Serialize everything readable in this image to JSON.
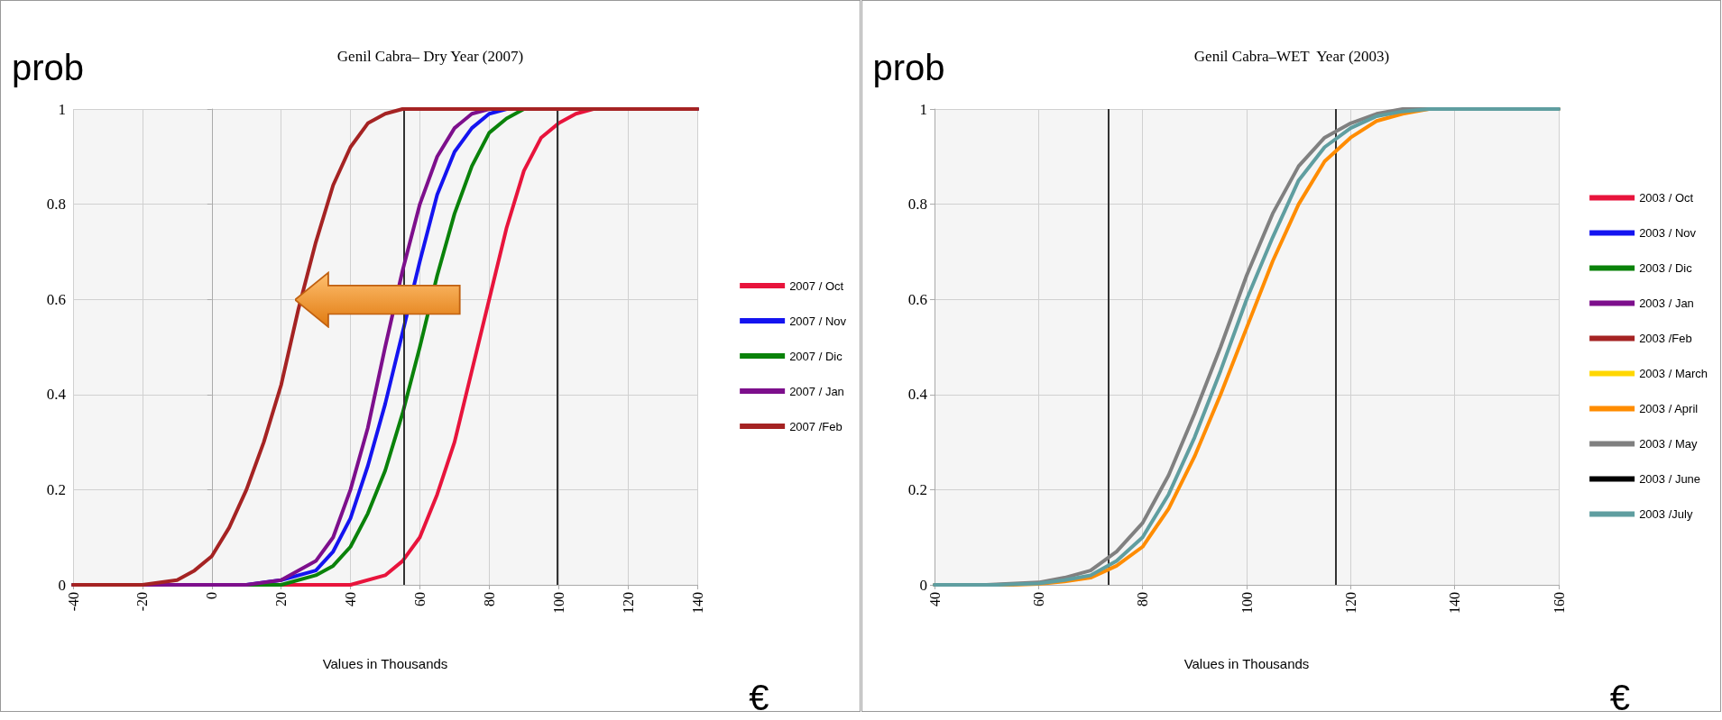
{
  "chart_data": [
    {
      "type": "line",
      "title": "Genil Cabra– Dry Year (2007)",
      "xlabel": "Values in Thousands",
      "ylabel": "prob",
      "annotations": [
        "€"
      ],
      "xlim": [
        -40,
        140
      ],
      "xticks": [
        -40,
        -20,
        0,
        20,
        40,
        60,
        80,
        100,
        120,
        140
      ],
      "ylim": [
        0,
        1
      ],
      "yticks": [
        0,
        0.2,
        0.4,
        0.6,
        0.8,
        1
      ],
      "grid": true,
      "legend": "right",
      "marker": "none",
      "line_style": "solid",
      "ref_lines": [
        {
          "axis": "x",
          "value": 55.5,
          "color": "#333333"
        },
        {
          "axis": "x",
          "value": 99.7,
          "color": "#333333"
        }
      ],
      "series": [
        {
          "name": "2007 / Oct",
          "color": "#e8143c",
          "x": [
            -40,
            40,
            50,
            55,
            60,
            65,
            70,
            75,
            80,
            85,
            90,
            95,
            100,
            105,
            110,
            140
          ],
          "values": [
            0,
            0,
            0.02,
            0.05,
            0.1,
            0.19,
            0.3,
            0.45,
            0.6,
            0.75,
            0.87,
            0.94,
            0.97,
            0.99,
            1,
            1
          ]
        },
        {
          "name": "2007 / Nov",
          "color": "#1414f0",
          "x": [
            -40,
            10,
            20,
            30,
            35,
            40,
            45,
            50,
            55,
            60,
            65,
            70,
            75,
            80,
            85,
            140
          ],
          "values": [
            0,
            0,
            0.01,
            0.03,
            0.07,
            0.14,
            0.25,
            0.38,
            0.53,
            0.68,
            0.82,
            0.91,
            0.96,
            0.99,
            1,
            1
          ]
        },
        {
          "name": "2007 / Dic",
          "color": "#0a820a",
          "x": [
            -40,
            20,
            30,
            35,
            40,
            45,
            50,
            55,
            60,
            65,
            70,
            75,
            80,
            85,
            90,
            140
          ],
          "values": [
            0,
            0,
            0.02,
            0.04,
            0.08,
            0.15,
            0.24,
            0.36,
            0.5,
            0.65,
            0.78,
            0.88,
            0.95,
            0.98,
            1,
            1
          ]
        },
        {
          "name": "2007 / Jan",
          "color": "#7d0f8c",
          "x": [
            -40,
            10,
            20,
            30,
            35,
            40,
            45,
            50,
            55,
            60,
            65,
            70,
            75,
            80,
            140
          ],
          "values": [
            0,
            0,
            0.01,
            0.05,
            0.1,
            0.2,
            0.33,
            0.5,
            0.66,
            0.8,
            0.9,
            0.96,
            0.99,
            1,
            1
          ]
        },
        {
          "name": "2007 /Feb",
          "color": "#a52323",
          "x": [
            -40,
            -20,
            -10,
            -5,
            0,
            5,
            10,
            15,
            20,
            25,
            30,
            35,
            40,
            45,
            50,
            55,
            140
          ],
          "values": [
            0,
            0,
            0.01,
            0.03,
            0.06,
            0.12,
            0.2,
            0.3,
            0.42,
            0.58,
            0.72,
            0.84,
            0.92,
            0.97,
            0.99,
            1,
            1
          ]
        }
      ]
    },
    {
      "type": "line",
      "title": "Genil Cabra–WET  Year (2003)",
      "xlabel": "Values in Thousands",
      "ylabel": "prob",
      "annotations": [
        "€"
      ],
      "xlim": [
        40,
        160
      ],
      "xticks": [
        40,
        60,
        80,
        100,
        120,
        140,
        160
      ],
      "ylim": [
        0,
        1
      ],
      "yticks": [
        0,
        0.2,
        0.4,
        0.6,
        0.8,
        1
      ],
      "grid": true,
      "legend": "right",
      "marker": "none",
      "line_style": "solid",
      "ref_lines": [
        {
          "axis": "x",
          "value": 73.5,
          "color": "#333333"
        },
        {
          "axis": "x",
          "value": 117.2,
          "color": "#333333"
        }
      ],
      "series": [
        {
          "name": "2003 / Oct",
          "color": "#e8143c"
        },
        {
          "name": "2003 / Nov",
          "color": "#1414f0"
        },
        {
          "name": "2003 / Dic",
          "color": "#0a820a"
        },
        {
          "name": "2003 / Jan",
          "color": "#7d0f8c"
        },
        {
          "name": "2003 /Feb",
          "color": "#a52323"
        },
        {
          "name": "2003 / March",
          "color": "#ffd700"
        },
        {
          "name": "2003 / April",
          "color": "#ff8c00",
          "x": [
            40,
            55,
            60,
            65,
            70,
            75,
            80,
            85,
            90,
            95,
            100,
            105,
            110,
            115,
            120,
            125,
            130,
            135,
            160
          ],
          "values": [
            0,
            0,
            0.002,
            0.007,
            0.015,
            0.04,
            0.08,
            0.16,
            0.27,
            0.4,
            0.54,
            0.68,
            0.8,
            0.89,
            0.94,
            0.975,
            0.99,
            1,
            1
          ]
        },
        {
          "name": "2003 / May",
          "color": "#808080",
          "x": [
            40,
            50,
            60,
            65,
            70,
            75,
            80,
            85,
            90,
            95,
            100,
            105,
            110,
            115,
            120,
            125,
            130,
            160
          ],
          "values": [
            0,
            0,
            0.005,
            0.015,
            0.03,
            0.07,
            0.13,
            0.23,
            0.36,
            0.5,
            0.65,
            0.78,
            0.88,
            0.94,
            0.97,
            0.99,
            1,
            1
          ]
        },
        {
          "name": "2003 / June",
          "color": "#000000"
        },
        {
          "name": "2003 /July",
          "color": "#5f9ea0",
          "x": [
            40,
            52,
            60,
            65,
            70,
            75,
            80,
            85,
            90,
            95,
            100,
            105,
            110,
            115,
            120,
            125,
            130,
            135,
            160
          ],
          "values": [
            0,
            0,
            0.003,
            0.01,
            0.02,
            0.05,
            0.1,
            0.19,
            0.31,
            0.45,
            0.6,
            0.73,
            0.85,
            0.92,
            0.96,
            0.985,
            0.995,
            1,
            1
          ]
        }
      ]
    }
  ]
}
